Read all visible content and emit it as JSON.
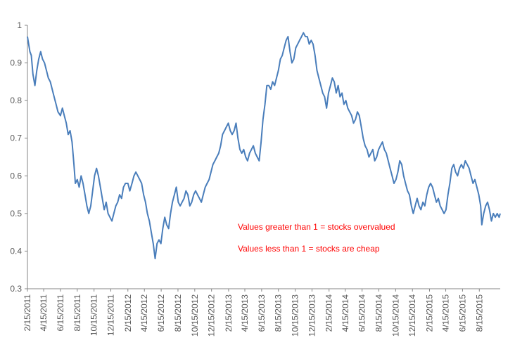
{
  "chart_data": {
    "type": "line",
    "title": "",
    "xlabel": "",
    "ylabel": "",
    "ylim": [
      0.3,
      1
    ],
    "y_ticks": [
      "0.3",
      "0.4",
      "0.5",
      "0.6",
      "0.7",
      "0.8",
      "0.9",
      "1"
    ],
    "x_range": [
      "2011-02-15",
      "2015-10-30"
    ],
    "x_ticks": [
      {
        "label": "2/15/2011",
        "date": "2011-02-15"
      },
      {
        "label": "4/15/2011",
        "date": "2011-04-15"
      },
      {
        "label": "6/15/2011",
        "date": "2011-06-15"
      },
      {
        "label": "8/15/2011",
        "date": "2011-08-15"
      },
      {
        "label": "10/15/2011",
        "date": "2011-10-15"
      },
      {
        "label": "12/15/2011",
        "date": "2011-12-15"
      },
      {
        "label": "2/15/2012",
        "date": "2012-02-15"
      },
      {
        "label": "4/15/2012",
        "date": "2012-04-15"
      },
      {
        "label": "6/15/2012",
        "date": "2012-06-15"
      },
      {
        "label": "8/15/2012",
        "date": "2012-08-15"
      },
      {
        "label": "10/15/2012",
        "date": "2012-10-15"
      },
      {
        "label": "12/15/2012",
        "date": "2012-12-15"
      },
      {
        "label": "2/15/2013",
        "date": "2013-02-15"
      },
      {
        "label": "4/15/2013",
        "date": "2013-04-15"
      },
      {
        "label": "6/15/2013",
        "date": "2013-06-15"
      },
      {
        "label": "8/15/2013",
        "date": "2013-08-15"
      },
      {
        "label": "10/15/2013",
        "date": "2013-10-15"
      },
      {
        "label": "12/15/2013",
        "date": "2013-12-15"
      },
      {
        "label": "2/15/2014",
        "date": "2014-02-15"
      },
      {
        "label": "4/15/2014",
        "date": "2014-04-15"
      },
      {
        "label": "6/15/2014",
        "date": "2014-06-15"
      },
      {
        "label": "8/15/2014",
        "date": "2014-08-15"
      },
      {
        "label": "10/15/2014",
        "date": "2014-10-15"
      },
      {
        "label": "12/15/2014",
        "date": "2014-12-15"
      },
      {
        "label": "2/15/2015",
        "date": "2015-02-15"
      },
      {
        "label": "4/15/2015",
        "date": "2015-04-15"
      },
      {
        "label": "6/15/2015",
        "date": "2015-06-15"
      },
      {
        "label": "8/15/2015",
        "date": "2015-08-15"
      }
    ],
    "grid": false,
    "legend": "none",
    "line_color": "#4a7ebb",
    "series": [
      {
        "points": [
          [
            "2011-02-15",
            0.97
          ],
          [
            "2011-02-24",
            0.93
          ],
          [
            "2011-03-01",
            0.92
          ],
          [
            "2011-03-07",
            0.87
          ],
          [
            "2011-03-14",
            0.84
          ],
          [
            "2011-03-21",
            0.88
          ],
          [
            "2011-03-28",
            0.91
          ],
          [
            "2011-04-04",
            0.93
          ],
          [
            "2011-04-11",
            0.91
          ],
          [
            "2011-04-18",
            0.9
          ],
          [
            "2011-04-25",
            0.88
          ],
          [
            "2011-05-02",
            0.86
          ],
          [
            "2011-05-09",
            0.85
          ],
          [
            "2011-05-16",
            0.83
          ],
          [
            "2011-05-23",
            0.81
          ],
          [
            "2011-05-30",
            0.79
          ],
          [
            "2011-06-06",
            0.77
          ],
          [
            "2011-06-15",
            0.76
          ],
          [
            "2011-06-22",
            0.78
          ],
          [
            "2011-06-29",
            0.76
          ],
          [
            "2011-07-06",
            0.74
          ],
          [
            "2011-07-13",
            0.71
          ],
          [
            "2011-07-20",
            0.72
          ],
          [
            "2011-07-27",
            0.69
          ],
          [
            "2011-08-03",
            0.63
          ],
          [
            "2011-08-08",
            0.58
          ],
          [
            "2011-08-15",
            0.59
          ],
          [
            "2011-08-22",
            0.57
          ],
          [
            "2011-08-29",
            0.6
          ],
          [
            "2011-09-05",
            0.58
          ],
          [
            "2011-09-12",
            0.55
          ],
          [
            "2011-09-19",
            0.52
          ],
          [
            "2011-09-26",
            0.5
          ],
          [
            "2011-10-03",
            0.52
          ],
          [
            "2011-10-10",
            0.56
          ],
          [
            "2011-10-17",
            0.6
          ],
          [
            "2011-10-24",
            0.62
          ],
          [
            "2011-10-31",
            0.6
          ],
          [
            "2011-11-07",
            0.57
          ],
          [
            "2011-11-14",
            0.54
          ],
          [
            "2011-11-21",
            0.51
          ],
          [
            "2011-11-28",
            0.53
          ],
          [
            "2011-12-05",
            0.5
          ],
          [
            "2011-12-12",
            0.49
          ],
          [
            "2011-12-19",
            0.48
          ],
          [
            "2011-12-26",
            0.5
          ],
          [
            "2012-01-02",
            0.52
          ],
          [
            "2012-01-09",
            0.53
          ],
          [
            "2012-01-16",
            0.55
          ],
          [
            "2012-01-23",
            0.54
          ],
          [
            "2012-01-30",
            0.57
          ],
          [
            "2012-02-06",
            0.58
          ],
          [
            "2012-02-15",
            0.58
          ],
          [
            "2012-02-22",
            0.56
          ],
          [
            "2012-03-01",
            0.58
          ],
          [
            "2012-03-08",
            0.6
          ],
          [
            "2012-03-15",
            0.61
          ],
          [
            "2012-03-22",
            0.6
          ],
          [
            "2012-03-29",
            0.59
          ],
          [
            "2012-04-05",
            0.58
          ],
          [
            "2012-04-12",
            0.55
          ],
          [
            "2012-04-19",
            0.53
          ],
          [
            "2012-04-26",
            0.5
          ],
          [
            "2012-05-03",
            0.48
          ],
          [
            "2012-05-10",
            0.45
          ],
          [
            "2012-05-17",
            0.42
          ],
          [
            "2012-05-24",
            0.38
          ],
          [
            "2012-05-31",
            0.42
          ],
          [
            "2012-06-07",
            0.43
          ],
          [
            "2012-06-14",
            0.42
          ],
          [
            "2012-06-21",
            0.46
          ],
          [
            "2012-06-28",
            0.49
          ],
          [
            "2012-07-05",
            0.47
          ],
          [
            "2012-07-12",
            0.46
          ],
          [
            "2012-07-19",
            0.5
          ],
          [
            "2012-07-26",
            0.53
          ],
          [
            "2012-08-02",
            0.55
          ],
          [
            "2012-08-09",
            0.57
          ],
          [
            "2012-08-16",
            0.53
          ],
          [
            "2012-08-23",
            0.52
          ],
          [
            "2012-08-30",
            0.53
          ],
          [
            "2012-09-06",
            0.54
          ],
          [
            "2012-09-13",
            0.56
          ],
          [
            "2012-09-20",
            0.55
          ],
          [
            "2012-09-27",
            0.52
          ],
          [
            "2012-10-04",
            0.53
          ],
          [
            "2012-10-11",
            0.55
          ],
          [
            "2012-10-18",
            0.56
          ],
          [
            "2012-10-25",
            0.55
          ],
          [
            "2012-11-01",
            0.54
          ],
          [
            "2012-11-08",
            0.53
          ],
          [
            "2012-11-15",
            0.55
          ],
          [
            "2012-11-22",
            0.57
          ],
          [
            "2012-11-29",
            0.58
          ],
          [
            "2012-12-06",
            0.59
          ],
          [
            "2012-12-13",
            0.61
          ],
          [
            "2012-12-20",
            0.63
          ],
          [
            "2012-12-27",
            0.64
          ],
          [
            "2013-01-03",
            0.65
          ],
          [
            "2013-01-10",
            0.66
          ],
          [
            "2013-01-17",
            0.68
          ],
          [
            "2013-01-24",
            0.71
          ],
          [
            "2013-01-31",
            0.72
          ],
          [
            "2013-02-07",
            0.73
          ],
          [
            "2013-02-14",
            0.74
          ],
          [
            "2013-02-21",
            0.72
          ],
          [
            "2013-02-28",
            0.71
          ],
          [
            "2013-03-07",
            0.72
          ],
          [
            "2013-03-14",
            0.74
          ],
          [
            "2013-03-21",
            0.7
          ],
          [
            "2013-03-28",
            0.67
          ],
          [
            "2013-04-04",
            0.66
          ],
          [
            "2013-04-11",
            0.67
          ],
          [
            "2013-04-18",
            0.65
          ],
          [
            "2013-04-25",
            0.64
          ],
          [
            "2013-05-02",
            0.66
          ],
          [
            "2013-05-09",
            0.67
          ],
          [
            "2013-05-16",
            0.68
          ],
          [
            "2013-05-23",
            0.66
          ],
          [
            "2013-05-30",
            0.65
          ],
          [
            "2013-06-06",
            0.64
          ],
          [
            "2013-06-13",
            0.69
          ],
          [
            "2013-06-20",
            0.75
          ],
          [
            "2013-06-27",
            0.79
          ],
          [
            "2013-07-04",
            0.84
          ],
          [
            "2013-07-11",
            0.84
          ],
          [
            "2013-07-18",
            0.83
          ],
          [
            "2013-07-25",
            0.85
          ],
          [
            "2013-08-01",
            0.84
          ],
          [
            "2013-08-08",
            0.86
          ],
          [
            "2013-08-15",
            0.88
          ],
          [
            "2013-08-22",
            0.91
          ],
          [
            "2013-08-29",
            0.92
          ],
          [
            "2013-09-05",
            0.94
          ],
          [
            "2013-09-12",
            0.96
          ],
          [
            "2013-09-19",
            0.97
          ],
          [
            "2013-09-26",
            0.93
          ],
          [
            "2013-10-03",
            0.9
          ],
          [
            "2013-10-10",
            0.91
          ],
          [
            "2013-10-17",
            0.94
          ],
          [
            "2013-10-24",
            0.95
          ],
          [
            "2013-10-31",
            0.96
          ],
          [
            "2013-11-07",
            0.97
          ],
          [
            "2013-11-14",
            0.98
          ],
          [
            "2013-11-21",
            0.97
          ],
          [
            "2013-11-28",
            0.97
          ],
          [
            "2013-12-05",
            0.95
          ],
          [
            "2013-12-12",
            0.96
          ],
          [
            "2013-12-19",
            0.95
          ],
          [
            "2013-12-26",
            0.92
          ],
          [
            "2014-01-02",
            0.88
          ],
          [
            "2014-01-09",
            0.86
          ],
          [
            "2014-01-16",
            0.84
          ],
          [
            "2014-01-23",
            0.82
          ],
          [
            "2014-01-30",
            0.81
          ],
          [
            "2014-02-06",
            0.78
          ],
          [
            "2014-02-13",
            0.82
          ],
          [
            "2014-02-20",
            0.84
          ],
          [
            "2014-02-27",
            0.86
          ],
          [
            "2014-03-06",
            0.85
          ],
          [
            "2014-03-13",
            0.82
          ],
          [
            "2014-03-20",
            0.84
          ],
          [
            "2014-03-27",
            0.81
          ],
          [
            "2014-04-03",
            0.82
          ],
          [
            "2014-04-10",
            0.79
          ],
          [
            "2014-04-17",
            0.8
          ],
          [
            "2014-04-24",
            0.78
          ],
          [
            "2014-05-01",
            0.77
          ],
          [
            "2014-05-08",
            0.76
          ],
          [
            "2014-05-15",
            0.74
          ],
          [
            "2014-05-22",
            0.75
          ],
          [
            "2014-05-29",
            0.77
          ],
          [
            "2014-06-05",
            0.76
          ],
          [
            "2014-06-12",
            0.73
          ],
          [
            "2014-06-19",
            0.7
          ],
          [
            "2014-06-26",
            0.68
          ],
          [
            "2014-07-03",
            0.67
          ],
          [
            "2014-07-10",
            0.65
          ],
          [
            "2014-07-17",
            0.66
          ],
          [
            "2014-07-24",
            0.67
          ],
          [
            "2014-07-31",
            0.64
          ],
          [
            "2014-08-07",
            0.65
          ],
          [
            "2014-08-14",
            0.67
          ],
          [
            "2014-08-21",
            0.68
          ],
          [
            "2014-08-28",
            0.69
          ],
          [
            "2014-09-04",
            0.67
          ],
          [
            "2014-09-11",
            0.66
          ],
          [
            "2014-09-18",
            0.64
          ],
          [
            "2014-09-25",
            0.62
          ],
          [
            "2014-10-02",
            0.6
          ],
          [
            "2014-10-09",
            0.58
          ],
          [
            "2014-10-16",
            0.59
          ],
          [
            "2014-10-23",
            0.61
          ],
          [
            "2014-10-30",
            0.64
          ],
          [
            "2014-11-06",
            0.63
          ],
          [
            "2014-11-13",
            0.6
          ],
          [
            "2014-11-20",
            0.58
          ],
          [
            "2014-11-27",
            0.56
          ],
          [
            "2014-12-04",
            0.55
          ],
          [
            "2014-12-11",
            0.52
          ],
          [
            "2014-12-18",
            0.5
          ],
          [
            "2014-12-25",
            0.52
          ],
          [
            "2015-01-01",
            0.54
          ],
          [
            "2015-01-08",
            0.52
          ],
          [
            "2015-01-15",
            0.51
          ],
          [
            "2015-01-22",
            0.53
          ],
          [
            "2015-01-29",
            0.52
          ],
          [
            "2015-02-05",
            0.55
          ],
          [
            "2015-02-12",
            0.57
          ],
          [
            "2015-02-19",
            0.58
          ],
          [
            "2015-02-26",
            0.57
          ],
          [
            "2015-03-05",
            0.55
          ],
          [
            "2015-03-12",
            0.53
          ],
          [
            "2015-03-19",
            0.54
          ],
          [
            "2015-03-26",
            0.52
          ],
          [
            "2015-04-02",
            0.51
          ],
          [
            "2015-04-09",
            0.5
          ],
          [
            "2015-04-16",
            0.51
          ],
          [
            "2015-04-23",
            0.55
          ],
          [
            "2015-04-30",
            0.58
          ],
          [
            "2015-05-07",
            0.62
          ],
          [
            "2015-05-14",
            0.63
          ],
          [
            "2015-05-21",
            0.61
          ],
          [
            "2015-05-28",
            0.6
          ],
          [
            "2015-06-04",
            0.62
          ],
          [
            "2015-06-11",
            0.63
          ],
          [
            "2015-06-18",
            0.62
          ],
          [
            "2015-06-25",
            0.64
          ],
          [
            "2015-07-02",
            0.63
          ],
          [
            "2015-07-09",
            0.62
          ],
          [
            "2015-07-16",
            0.6
          ],
          [
            "2015-07-23",
            0.58
          ],
          [
            "2015-07-30",
            0.59
          ],
          [
            "2015-08-06",
            0.57
          ],
          [
            "2015-08-13",
            0.55
          ],
          [
            "2015-08-20",
            0.52
          ],
          [
            "2015-08-24",
            0.47
          ],
          [
            "2015-08-31",
            0.5
          ],
          [
            "2015-09-07",
            0.52
          ],
          [
            "2015-09-14",
            0.53
          ],
          [
            "2015-09-21",
            0.51
          ],
          [
            "2015-09-28",
            0.48
          ],
          [
            "2015-10-05",
            0.5
          ],
          [
            "2015-10-12",
            0.49
          ],
          [
            "2015-10-19",
            0.5
          ],
          [
            "2015-10-26",
            0.49
          ],
          [
            "2015-10-30",
            0.5
          ]
        ]
      }
    ],
    "annotations": [
      {
        "text": "Values greater than 1 = stocks overvalued",
        "color": "#ff0000"
      },
      {
        "text": "Values less than 1 = stocks are cheap",
        "color": "#ff0000"
      }
    ]
  }
}
